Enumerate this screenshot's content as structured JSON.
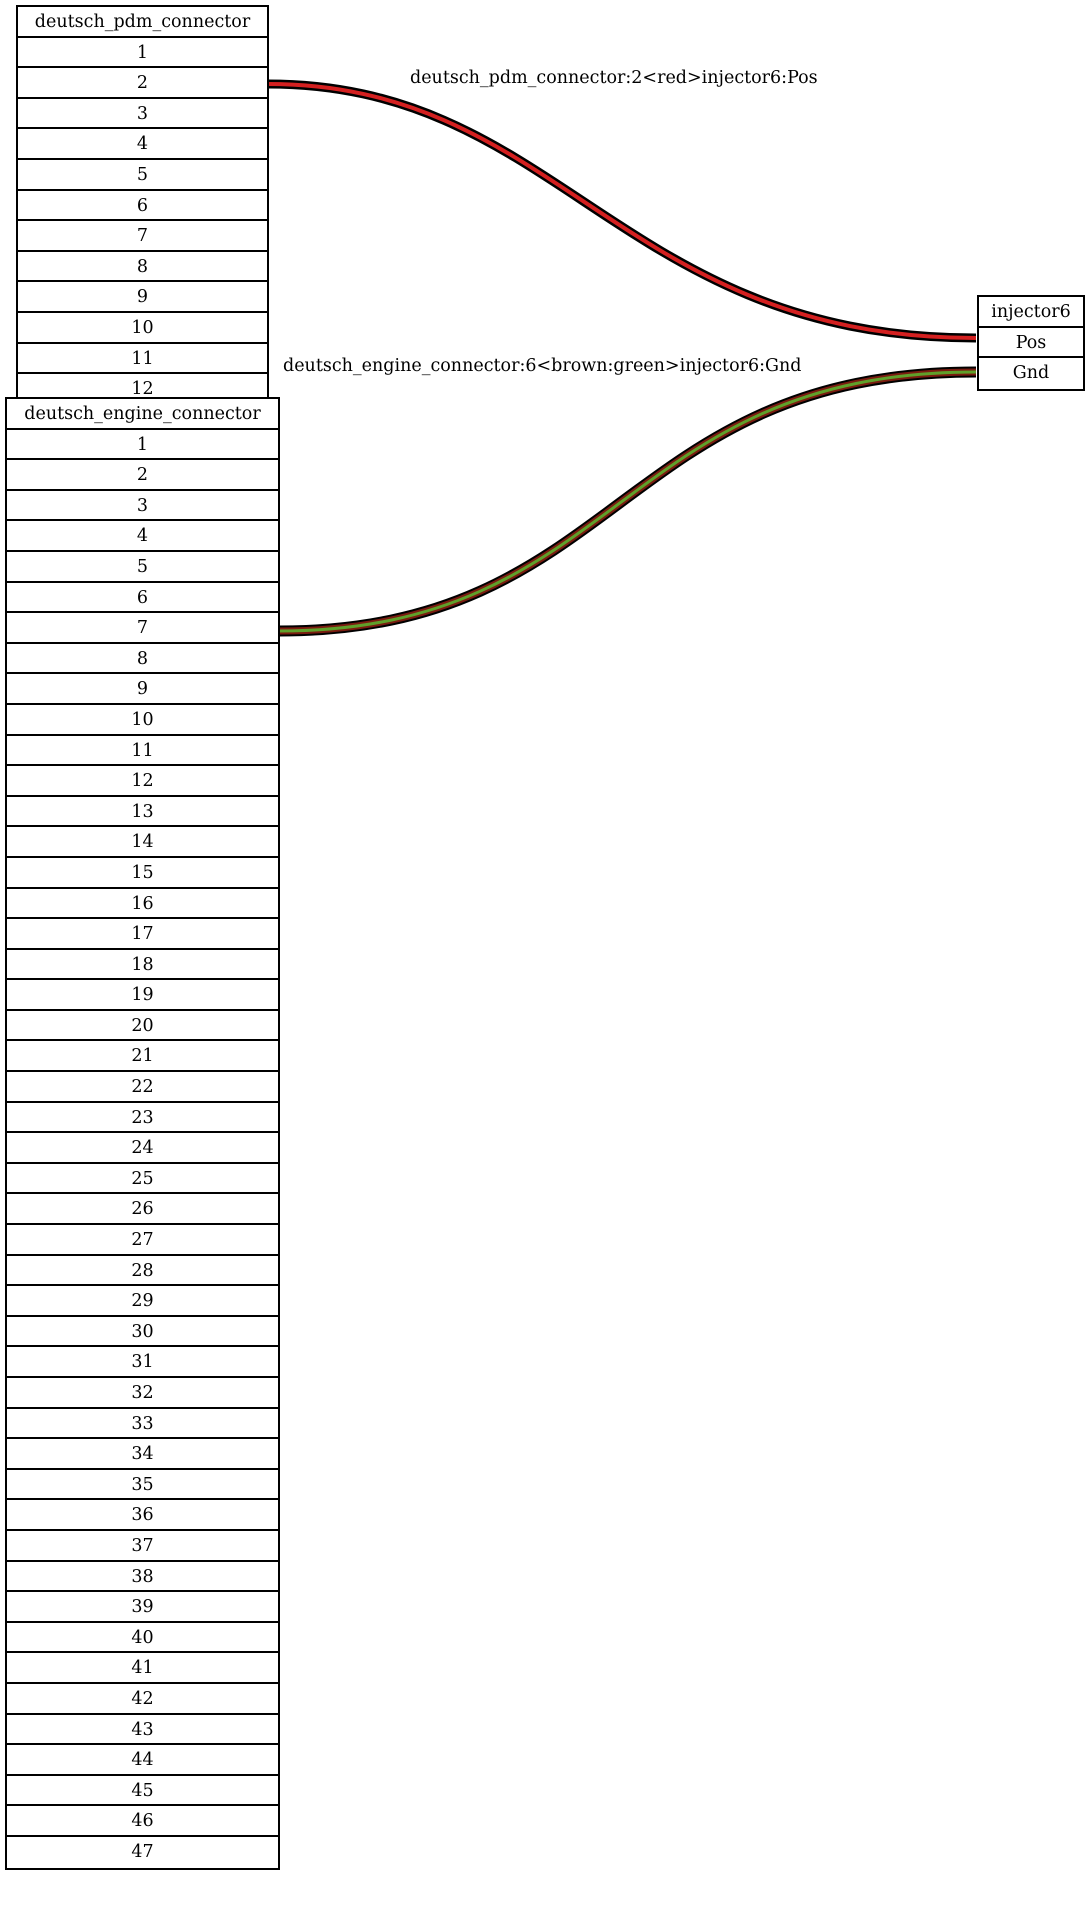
{
  "nodes": {
    "pdm": {
      "title": "deutsch_pdm_connector",
      "pins": [
        "1",
        "2",
        "3",
        "4",
        "5",
        "6",
        "7",
        "8",
        "9",
        "10",
        "11",
        "12"
      ]
    },
    "engine": {
      "title": "deutsch_engine_connector",
      "pins": [
        "1",
        "2",
        "3",
        "4",
        "5",
        "6",
        "7",
        "8",
        "9",
        "10",
        "11",
        "12",
        "13",
        "14",
        "15",
        "16",
        "17",
        "18",
        "19",
        "20",
        "21",
        "22",
        "23",
        "24",
        "25",
        "26",
        "27",
        "28",
        "29",
        "30",
        "31",
        "32",
        "33",
        "34",
        "35",
        "36",
        "37",
        "38",
        "39",
        "40",
        "41",
        "42",
        "43",
        "44",
        "45",
        "46",
        "47"
      ]
    },
    "injector": {
      "title": "injector6",
      "pins": [
        "Pos",
        "Gnd"
      ]
    }
  },
  "edges": [
    {
      "label": "deutsch_pdm_connector:2<red>injector6:Pos",
      "from": "deutsch_pdm_connector:2",
      "to": "injector6:Pos",
      "colors": [
        "#d42020"
      ]
    },
    {
      "label": "deutsch_engine_connector:6<brown:green>injector6:Gnd",
      "from": "deutsch_engine_connector:6",
      "to": "injector6:Gnd",
      "colors": [
        "#7a1c10",
        "#5fa02a"
      ]
    }
  ]
}
